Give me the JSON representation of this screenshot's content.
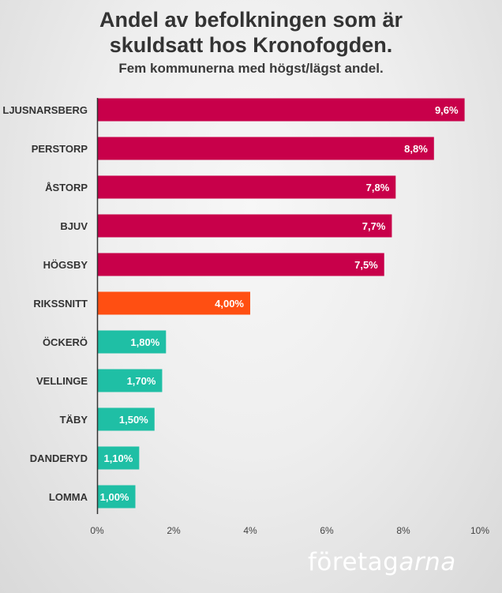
{
  "chart_data": {
    "type": "bar",
    "orientation": "horizontal",
    "title": "Andel av befolkningen som är skuldsatt hos Kronofogden.",
    "title_lines": [
      "Andel av befolkningen som är",
      "skuldsatt hos Kronofogden."
    ],
    "subtitle": "Fem kommunerna med högst/lägst andel.",
    "categories": [
      "LJUSNARSBERG",
      "PERSTORP",
      "ÅSTORP",
      "BJUV",
      "HÖGSBY",
      "RIKSSNITT",
      "ÖCKERÖ",
      "VELLINGE",
      "TÄBY",
      "DANDERYD",
      "LOMMA"
    ],
    "values": [
      9.6,
      8.8,
      7.8,
      7.7,
      7.5,
      4.0,
      1.8,
      1.7,
      1.5,
      1.1,
      1.0
    ],
    "value_labels": [
      "9,6%",
      "8,8%",
      "7,8%",
      "7,7%",
      "7,5%",
      "4,00%",
      "1,80%",
      "1,70%",
      "1,50%",
      "1,10%",
      "1,00%"
    ],
    "groups": [
      "high",
      "high",
      "high",
      "high",
      "high",
      "average",
      "low",
      "low",
      "low",
      "low",
      "low"
    ],
    "colors": {
      "high": "#c8004a",
      "average": "#ff4f12",
      "low": "#1fbfa5"
    },
    "xlim": [
      0,
      10
    ],
    "xticks": [
      0,
      2,
      4,
      6,
      8,
      10
    ],
    "xtick_labels": [
      "0%",
      "2%",
      "4%",
      "6%",
      "8%",
      "10%"
    ],
    "xlabel": "",
    "ylabel": "",
    "grid": false,
    "legend": "none"
  },
  "logo": {
    "part1": "företag",
    "part2": "arna"
  }
}
